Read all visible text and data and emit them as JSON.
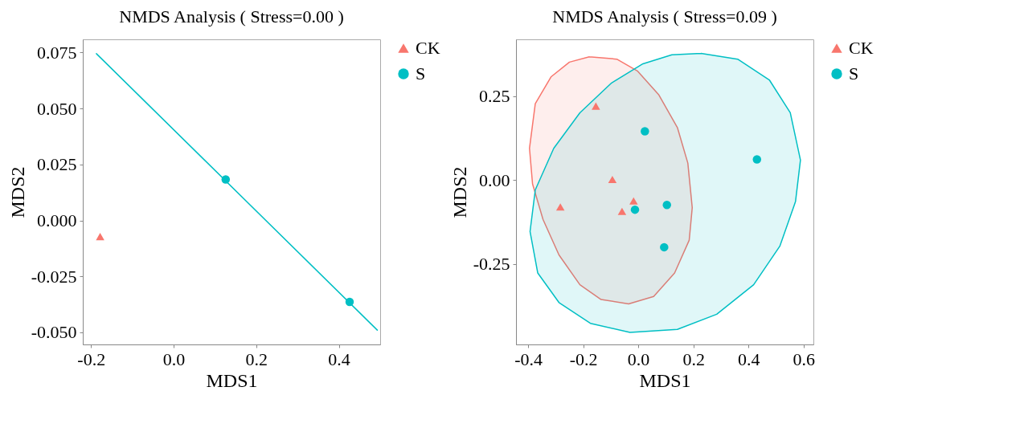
{
  "chart_data": [
    {
      "type": "scatter",
      "title": "NMDS Analysis ( Stress=0.00 )",
      "xlabel": "MDS1",
      "ylabel": "MDS2",
      "xlim": [
        -0.22,
        0.5
      ],
      "ylim": [
        -0.0554,
        0.0809
      ],
      "xticks": [
        -0.2,
        {
          "value": 0,
          "label": "0.0"
        },
        0.2,
        0.4
      ],
      "yticks": [
        {
          "value": -0.05,
          "label": "-0.050"
        },
        -0.025,
        {
          "value": 0,
          "label": "0.000"
        },
        0.025,
        {
          "value": 0.05,
          "label": "0.050"
        },
        0.075
      ],
      "grid": false,
      "legend": "right",
      "series": [
        {
          "name": "CK",
          "color": "#f8766d",
          "marker": "triangle",
          "x": [
            -0.178
          ],
          "values": [
            -0.0072
          ]
        },
        {
          "name": "S",
          "color": "#00bfc4",
          "marker": "circle",
          "x": [
            0.126,
            0.426
          ],
          "values": [
            0.0183,
            -0.0364
          ]
        },
        {
          "type": "line",
          "color": "#00bfc4",
          "x": [
            -0.187,
            0.493
          ],
          "values": [
            0.0745,
            -0.049
          ]
        }
      ]
    },
    {
      "type": "scatter",
      "title": "NMDS Analysis ( Stress=0.09 )",
      "xlabel": "MDS1",
      "ylabel": "MDS2",
      "xlim": [
        -0.444,
        0.636
      ],
      "ylim": [
        -0.49,
        0.42
      ],
      "xticks": [
        -0.4,
        -0.2,
        {
          "value": 0,
          "label": "0.0"
        },
        0.2,
        0.4,
        0.6
      ],
      "yticks": [
        -0.25,
        {
          "value": 0,
          "label": "0.00"
        },
        0.25
      ],
      "grid": false,
      "legend": "right",
      "series": [
        {
          "type": "area",
          "color": "#f8766d",
          "x": [
            -0.178,
            -0.25,
            -0.317,
            -0.374,
            -0.395,
            -0.384,
            -0.346,
            -0.288,
            -0.212,
            -0.135,
            -0.035,
            0.056,
            0.132,
            0.185,
            0.196,
            0.18,
            0.142,
            0.075,
            -0.002,
            -0.078,
            -0.178
          ],
          "values": [
            0.368,
            0.352,
            0.308,
            0.228,
            0.095,
            -0.011,
            -0.117,
            -0.223,
            -0.312,
            -0.356,
            -0.369,
            -0.347,
            -0.277,
            -0.179,
            -0.082,
            0.051,
            0.157,
            0.254,
            0.325,
            0.361,
            0.368
          ]
        },
        {
          "type": "area",
          "color": "#00bfc4",
          "x": [
            0.228,
            0.361,
            0.476,
            0.552,
            0.589,
            0.571,
            0.514,
            0.419,
            0.285,
            0.142,
            -0.03,
            -0.174,
            -0.288,
            -0.365,
            -0.393,
            -0.374,
            -0.307,
            -0.212,
            -0.097,
            0.017,
            0.122,
            0.228
          ],
          "values": [
            0.378,
            0.361,
            0.299,
            0.201,
            0.06,
            -0.064,
            -0.197,
            -0.312,
            -0.4,
            -0.445,
            -0.454,
            -0.427,
            -0.365,
            -0.277,
            -0.153,
            -0.029,
            0.095,
            0.201,
            0.29,
            0.347,
            0.374,
            0.378
          ]
        },
        {
          "name": "CK",
          "color": "#f8766d",
          "marker": "triangle",
          "x": [
            -0.154,
            -0.094,
            -0.283,
            -0.017,
            -0.059
          ],
          "values": [
            0.221,
            0.002,
            -0.08,
            -0.062,
            -0.093
          ]
        },
        {
          "name": "S",
          "color": "#00bfc4",
          "marker": "circle",
          "x": [
            0.024,
            0.431,
            -0.012,
            0.104,
            0.094
          ],
          "values": [
            0.146,
            0.062,
            -0.088,
            -0.074,
            -0.2
          ]
        }
      ]
    }
  ]
}
